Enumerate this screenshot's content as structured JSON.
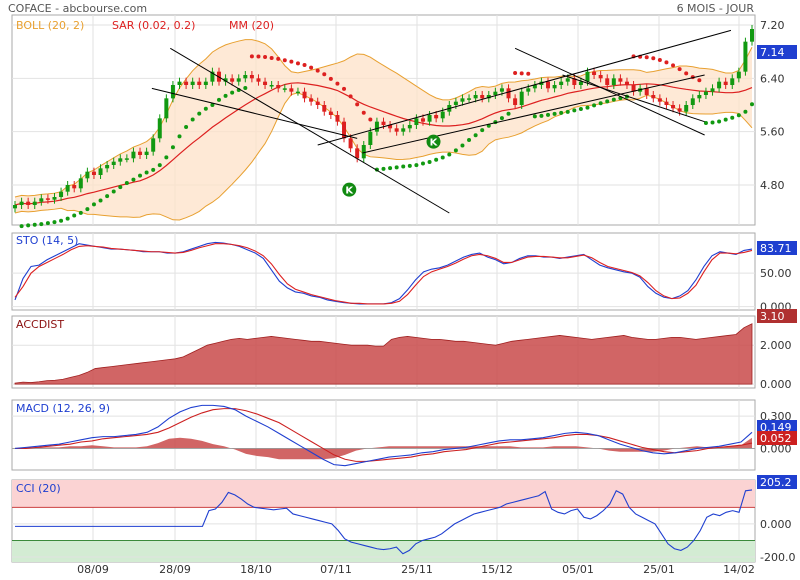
{
  "header": {
    "symbol_source": "COFACE - abcbourse.com",
    "period": "6 MOIS - JOUR"
  },
  "colors": {
    "boll": "#e8a030",
    "sar_down": "#dd2020",
    "sar_up": "#119911",
    "mm": "#dd2020",
    "sto_k": "#1f3fd0",
    "sto_d": "#dd2020",
    "acc": "#c94a4a",
    "macd": "#1f3fd0",
    "signal": "#cc2020",
    "cci": "#1f3fd0",
    "last_price_bg": "#1f3fd0"
  },
  "chart_data": [
    {
      "type": "candlestick",
      "legend": [
        {
          "label": "BOLL (20, 2)",
          "color": "#e8a030"
        },
        {
          "label": "SAR (0.02, 0.2)",
          "color": "#dd2020"
        },
        {
          "label": "MM (20)",
          "color": "#dd2020"
        }
      ],
      "ylim": [
        4.2,
        7.35
      ],
      "yticks": [
        "7.20",
        "6.40",
        "5.60",
        "4.80"
      ],
      "last_value": "7.14",
      "x_labels": [
        "08/09",
        "28/09",
        "18/10",
        "07/11",
        "25/11",
        "15/12",
        "05/01",
        "25/01",
        "14/02"
      ],
      "close": [
        4.5,
        4.55,
        4.5,
        4.55,
        4.6,
        4.58,
        4.62,
        4.7,
        4.8,
        4.75,
        4.9,
        5.0,
        4.95,
        5.05,
        5.1,
        5.15,
        5.2,
        5.2,
        5.3,
        5.25,
        5.3,
        5.5,
        5.8,
        6.1,
        6.3,
        6.35,
        6.3,
        6.35,
        6.3,
        6.35,
        6.5,
        6.35,
        6.4,
        6.35,
        6.4,
        6.45,
        6.4,
        6.35,
        6.3,
        6.3,
        6.25,
        6.25,
        6.2,
        6.2,
        6.1,
        6.05,
        6.0,
        5.9,
        5.85,
        5.75,
        5.5,
        5.35,
        5.2,
        5.4,
        5.6,
        5.75,
        5.7,
        5.65,
        5.6,
        5.65,
        5.7,
        5.8,
        5.75,
        5.85,
        5.8,
        5.9,
        6.0,
        6.05,
        6.1,
        6.1,
        6.15,
        6.1,
        6.15,
        6.2,
        6.25,
        6.1,
        6.0,
        6.2,
        6.25,
        6.3,
        6.35,
        6.25,
        6.3,
        6.35,
        6.4,
        6.3,
        6.35,
        6.5,
        6.45,
        6.4,
        6.3,
        6.4,
        6.35,
        6.3,
        6.2,
        6.25,
        6.15,
        6.1,
        6.05,
        6.0,
        5.95,
        5.9,
        6.0,
        6.1,
        6.15,
        6.2,
        6.25,
        6.35,
        6.3,
        6.4,
        6.5,
        6.95,
        7.14
      ],
      "trend_lines": [
        {
          "from": [
            59,
            6.85
          ],
          "to": [
            165,
            4.38
          ]
        },
        {
          "from": [
            52,
            6.25
          ],
          "to": [
            130,
            5.5
          ]
        },
        {
          "from": [
            115,
            5.4
          ],
          "to": [
            272,
            7.12
          ]
        },
        {
          "from": [
            132,
            5.28
          ],
          "to": [
            262,
            6.45
          ]
        },
        {
          "from": [
            190,
            6.85
          ],
          "to": [
            262,
            5.55
          ]
        },
        {
          "from": [
            208,
            6.45
          ],
          "to": [
            262,
            5.75
          ]
        }
      ],
      "markers": [
        {
          "label": "K",
          "x": 127,
          "y": 4.73
        },
        {
          "label": "K",
          "x": 159,
          "y": 5.45
        }
      ]
    },
    {
      "type": "line",
      "title": "STO (14, 5)",
      "ylim": [
        -5,
        110
      ],
      "yticks": [
        "50.00",
        "0.000"
      ],
      "last_value": "83.71",
      "series": [
        {
          "name": "K",
          "values": [
            10,
            42,
            60,
            62,
            70,
            76,
            82,
            88,
            94,
            92,
            90,
            88,
            86,
            86,
            85,
            84,
            82,
            82,
            82,
            80,
            80,
            82,
            86,
            90,
            94,
            96,
            95,
            93,
            90,
            85,
            80,
            72,
            55,
            38,
            28,
            22,
            20,
            16,
            14,
            10,
            8,
            6,
            5,
            4,
            4,
            4,
            4,
            6,
            12,
            25,
            40,
            52,
            56,
            58,
            62,
            68,
            74,
            78,
            80,
            74,
            70,
            64,
            66,
            72,
            76,
            76,
            74,
            74,
            72,
            74,
            76,
            78,
            70,
            62,
            58,
            55,
            52,
            50,
            44,
            30,
            20,
            14,
            12,
            16,
            24,
            40,
            60,
            76,
            82,
            80,
            78,
            84,
            86
          ]
        },
        {
          "name": "D",
          "values": [
            14,
            30,
            50,
            60,
            66,
            72,
            78,
            85,
            90,
            91,
            90,
            89,
            87,
            86,
            85,
            84,
            83,
            82,
            82,
            81,
            80,
            81,
            84,
            88,
            91,
            94,
            94,
            93,
            91,
            88,
            83,
            76,
            64,
            48,
            34,
            26,
            22,
            18,
            15,
            12,
            9,
            7,
            5,
            5,
            4,
            4,
            4,
            5,
            8,
            18,
            32,
            45,
            52,
            56,
            60,
            65,
            71,
            76,
            78,
            76,
            72,
            66,
            66,
            70,
            74,
            75,
            75,
            74,
            73,
            73,
            75,
            77,
            73,
            66,
            60,
            57,
            54,
            51,
            46,
            36,
            24,
            16,
            12,
            13,
            20,
            32,
            52,
            70,
            80,
            80,
            79,
            81,
            84
          ]
        }
      ]
    },
    {
      "type": "area",
      "title": "ACCDIST",
      "ylim": [
        -0.2,
        3.5
      ],
      "yticks": [
        "2.000",
        "0.000"
      ],
      "last_value": "3.10",
      "values": [
        0.05,
        0.1,
        0.08,
        0.12,
        0.18,
        0.2,
        0.25,
        0.35,
        0.45,
        0.6,
        0.8,
        0.85,
        0.9,
        0.95,
        1.0,
        1.05,
        1.1,
        1.15,
        1.2,
        1.25,
        1.3,
        1.4,
        1.6,
        1.8,
        2.0,
        2.1,
        2.2,
        2.3,
        2.35,
        2.3,
        2.35,
        2.4,
        2.45,
        2.4,
        2.35,
        2.3,
        2.25,
        2.2,
        2.2,
        2.15,
        2.1,
        2.05,
        2.0,
        2.0,
        2.0,
        1.95,
        1.95,
        2.3,
        2.4,
        2.45,
        2.4,
        2.35,
        2.3,
        2.3,
        2.25,
        2.2,
        2.2,
        2.15,
        2.1,
        2.05,
        2.0,
        2.1,
        2.2,
        2.25,
        2.3,
        2.35,
        2.4,
        2.45,
        2.5,
        2.45,
        2.4,
        2.35,
        2.3,
        2.35,
        2.4,
        2.45,
        2.5,
        2.4,
        2.35,
        2.3,
        2.3,
        2.35,
        2.4,
        2.4,
        2.35,
        2.3,
        2.35,
        2.4,
        2.45,
        2.5,
        2.55,
        2.9,
        3.1
      ]
    },
    {
      "type": "line",
      "title": "MACD (12, 26, 9)",
      "ylim": [
        -0.2,
        0.45
      ],
      "yticks": [
        "0.300",
        "0.000"
      ],
      "series": [
        {
          "name": "MACD",
          "last_value": "0.149",
          "values": [
            0,
            0.01,
            0.02,
            0.03,
            0.04,
            0.06,
            0.08,
            0.1,
            0.11,
            0.11,
            0.12,
            0.13,
            0.15,
            0.2,
            0.28,
            0.34,
            0.38,
            0.4,
            0.4,
            0.39,
            0.36,
            0.3,
            0.25,
            0.2,
            0.14,
            0.08,
            0.02,
            -0.04,
            -0.1,
            -0.15,
            -0.16,
            -0.14,
            -0.12,
            -0.1,
            -0.08,
            -0.07,
            -0.06,
            -0.04,
            -0.03,
            -0.01,
            0,
            0.01,
            0.03,
            0.05,
            0.07,
            0.08,
            0.08,
            0.09,
            0.1,
            0.12,
            0.14,
            0.15,
            0.14,
            0.12,
            0.08,
            0.04,
            0.01,
            -0.02,
            -0.04,
            -0.05,
            -0.04,
            -0.02,
            0,
            0.01,
            0.02,
            0.04,
            0.06,
            0.15
          ]
        },
        {
          "name": "Signal",
          "last_value": "0.052",
          "values": [
            0,
            0,
            0.01,
            0.02,
            0.03,
            0.04,
            0.06,
            0.07,
            0.09,
            0.1,
            0.11,
            0.12,
            0.13,
            0.15,
            0.19,
            0.24,
            0.29,
            0.33,
            0.36,
            0.37,
            0.37,
            0.35,
            0.32,
            0.28,
            0.24,
            0.18,
            0.12,
            0.06,
            0,
            -0.06,
            -0.1,
            -0.12,
            -0.12,
            -0.11,
            -0.1,
            -0.09,
            -0.08,
            -0.06,
            -0.05,
            -0.03,
            -0.02,
            -0.01,
            0.01,
            0.03,
            0.05,
            0.06,
            0.07,
            0.08,
            0.09,
            0.1,
            0.12,
            0.13,
            0.13,
            0.12,
            0.1,
            0.07,
            0.04,
            0.01,
            -0.01,
            -0.03,
            -0.04,
            -0.03,
            -0.02,
            0,
            0.01,
            0.02,
            0.03,
            0.05
          ]
        }
      ]
    },
    {
      "type": "line",
      "title": "CCI (20)",
      "ylim": [
        -230,
        265
      ],
      "yticks": [
        "0.000",
        "-200.0"
      ],
      "last_value": "205.2",
      "values": [
        -15,
        -15,
        -15,
        -15,
        -15,
        -15,
        -15,
        -15,
        -15,
        -15,
        -15,
        -15,
        -15,
        -15,
        -15,
        -15,
        -15,
        -15,
        -15,
        -15,
        -15,
        -15,
        -15,
        -15,
        -15,
        -15,
        -15,
        -15,
        -15,
        -15,
        80,
        90,
        130,
        190,
        175,
        150,
        120,
        100,
        95,
        90,
        85,
        90,
        95,
        60,
        50,
        40,
        30,
        20,
        10,
        0,
        -40,
        -90,
        -110,
        -120,
        -130,
        -140,
        -150,
        -155,
        -150,
        -140,
        -180,
        -160,
        -120,
        -100,
        -90,
        -80,
        -60,
        -30,
        0,
        20,
        40,
        60,
        70,
        80,
        90,
        100,
        120,
        130,
        140,
        150,
        160,
        170,
        195,
        90,
        70,
        60,
        80,
        90,
        40,
        30,
        50,
        80,
        120,
        200,
        180,
        100,
        60,
        40,
        20,
        0,
        -60,
        -120,
        -150,
        -160,
        -140,
        -100,
        -40,
        40,
        60,
        50,
        70,
        80,
        70,
        200,
        205
      ]
    }
  ]
}
